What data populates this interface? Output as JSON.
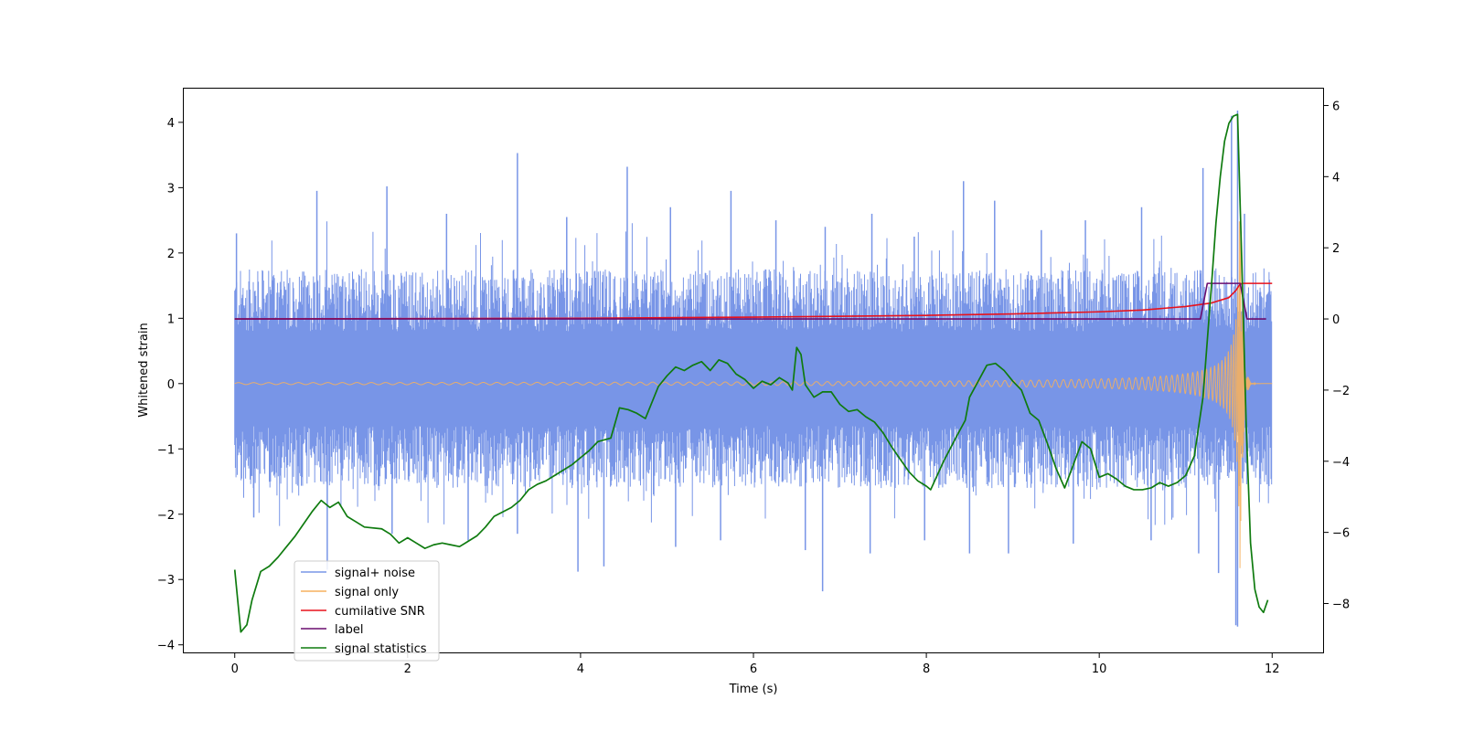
{
  "chart_data": {
    "type": "line",
    "title": "",
    "xlabel": "Time (s)",
    "ylabel": "Whitened strain",
    "y2label": "",
    "xlim": [
      -0.6,
      12.6
    ],
    "ylim": [
      -4.13,
      4.53
    ],
    "y2lim": [
      -9.4,
      6.5
    ],
    "xticks": [
      0,
      2,
      4,
      6,
      8,
      10,
      12
    ],
    "yticks": [
      -4,
      -3,
      -2,
      -1,
      0,
      1,
      2,
      3,
      4
    ],
    "y2ticks": [
      -8,
      -6,
      -4,
      -2,
      0,
      2,
      4,
      6
    ],
    "grid": false,
    "legend": {
      "placement": "lower-left",
      "entries": [
        "signal+ noise",
        "signal only",
        "cumilative SNR",
        "label",
        "signal statistics"
      ]
    },
    "noise_band": {
      "typical_low": -1.1,
      "typical_high": 1.35
    },
    "noise_spikes": {
      "x": [
        0.02,
        0.95,
        1.76,
        2.45,
        3.27,
        3.84,
        4.54,
        5.04,
        5.74,
        6.26,
        6.83,
        7.37,
        7.86,
        8.43,
        8.79,
        9.33,
        9.84,
        10.49,
        11.2,
        11.53,
        11.6,
        11.68
      ],
      "y": [
        2.3,
        2.95,
        3.02,
        2.6,
        3.53,
        2.55,
        3.32,
        2.7,
        2.95,
        2.5,
        2.4,
        2.6,
        2.25,
        3.1,
        2.8,
        2.35,
        2.5,
        2.7,
        3.3,
        4.1,
        4.18,
        2.6
      ]
    },
    "noise_dips": {
      "x": [
        0.22,
        1.07,
        1.82,
        2.7,
        3.27,
        3.97,
        4.27,
        5.1,
        5.62,
        6.6,
        6.8,
        7.35,
        7.98,
        8.5,
        8.95,
        9.7,
        10.6,
        11.15,
        11.38,
        11.58,
        11.6
      ],
      "y": [
        -2.05,
        -2.85,
        -2.3,
        -2.4,
        -2.3,
        -2.88,
        -2.8,
        -2.5,
        -2.4,
        -2.55,
        -3.18,
        -2.6,
        -2.4,
        -2.6,
        -2.6,
        -2.45,
        -2.4,
        -2.6,
        -2.9,
        -3.7,
        -3.72
      ]
    },
    "signal_only": {
      "t_merge": 11.64,
      "peak_amplitude": 2.9,
      "early_amplitude": 0.015
    },
    "cumulative_snr": {
      "x": [
        0,
        2,
        4,
        6,
        8,
        9,
        10,
        10.5,
        11,
        11.3,
        11.5,
        11.58,
        11.62,
        11.65,
        12
      ],
      "y": [
        0,
        0.01,
        0.02,
        0.05,
        0.1,
        0.14,
        0.2,
        0.25,
        0.35,
        0.45,
        0.6,
        0.8,
        0.95,
        1,
        1
      ]
    },
    "label": {
      "x": [
        0,
        11.17,
        11.25,
        11.63,
        11.71,
        11.93
      ],
      "y": [
        0,
        0,
        1,
        1,
        0,
        0
      ]
    },
    "signal_statistics": {
      "x": [
        0,
        0.07,
        0.14,
        0.2,
        0.3,
        0.4,
        0.5,
        0.6,
        0.7,
        0.8,
        0.9,
        1.0,
        1.1,
        1.2,
        1.3,
        1.4,
        1.5,
        1.7,
        1.8,
        1.9,
        2.0,
        2.1,
        2.2,
        2.3,
        2.4,
        2.5,
        2.6,
        2.7,
        2.8,
        2.9,
        3.0,
        3.2,
        3.3,
        3.4,
        3.5,
        3.6,
        3.7,
        3.8,
        3.9,
        4.0,
        4.1,
        4.2,
        4.35,
        4.45,
        4.55,
        4.65,
        4.75,
        4.9,
        5.0,
        5.1,
        5.2,
        5.3,
        5.4,
        5.5,
        5.6,
        5.7,
        5.8,
        5.9,
        6.0,
        6.1,
        6.2,
        6.3,
        6.4,
        6.45,
        6.5,
        6.55,
        6.6,
        6.7,
        6.8,
        6.9,
        7.0,
        7.1,
        7.2,
        7.3,
        7.4,
        7.5,
        7.6,
        7.7,
        7.8,
        7.9,
        8.0,
        8.05,
        8.2,
        8.35,
        8.45,
        8.5,
        8.6,
        8.7,
        8.8,
        8.9,
        9.0,
        9.1,
        9.2,
        9.3,
        9.4,
        9.5,
        9.6,
        9.7,
        9.8,
        9.9,
        10.0,
        10.1,
        10.2,
        10.3,
        10.4,
        10.5,
        10.6,
        10.7,
        10.8,
        10.9,
        11.0,
        11.1,
        11.2,
        11.25,
        11.3,
        11.35,
        11.4,
        11.45,
        11.5,
        11.55,
        11.6,
        11.65,
        11.7,
        11.75,
        11.8,
        11.85,
        11.9,
        11.95
      ],
      "y": [
        -7.05,
        -8.8,
        -8.6,
        -7.9,
        -7.1,
        -6.95,
        -6.7,
        -6.4,
        -6.1,
        -5.75,
        -5.4,
        -5.1,
        -5.3,
        -5.15,
        -5.55,
        -5.7,
        -5.85,
        -5.9,
        -6.05,
        -6.3,
        -6.15,
        -6.3,
        -6.45,
        -6.35,
        -6.3,
        -6.35,
        -6.4,
        -6.25,
        -6.1,
        -5.85,
        -5.55,
        -5.3,
        -5.1,
        -4.8,
        -4.65,
        -4.55,
        -4.4,
        -4.25,
        -4.1,
        -3.9,
        -3.7,
        -3.45,
        -3.35,
        -2.5,
        -2.55,
        -2.65,
        -2.8,
        -1.9,
        -1.6,
        -1.35,
        -1.45,
        -1.3,
        -1.2,
        -1.45,
        -1.15,
        -1.25,
        -1.55,
        -1.7,
        -1.95,
        -1.75,
        -1.85,
        -1.65,
        -1.8,
        -2.0,
        -0.8,
        -1.0,
        -1.85,
        -2.2,
        -2.05,
        -2.05,
        -2.4,
        -2.6,
        -2.55,
        -2.75,
        -2.9,
        -3.2,
        -3.6,
        -3.95,
        -4.3,
        -4.55,
        -4.7,
        -4.8,
        -4.0,
        -3.3,
        -2.85,
        -2.2,
        -1.75,
        -1.3,
        -1.25,
        -1.45,
        -1.75,
        -2.0,
        -2.65,
        -2.85,
        -3.5,
        -4.2,
        -4.75,
        -4.1,
        -3.45,
        -3.65,
        -4.45,
        -4.35,
        -4.5,
        -4.7,
        -4.8,
        -4.8,
        -4.75,
        -4.6,
        -4.7,
        -4.6,
        -4.4,
        -3.85,
        -2.2,
        -0.6,
        1.0,
        2.7,
        4.0,
        5.0,
        5.5,
        5.7,
        5.75,
        1.5,
        -3.0,
        -6.3,
        -7.6,
        -8.1,
        -8.25,
        -7.9
      ]
    },
    "colors": {
      "signal_noise": "#7895e7",
      "signal_only": "#f5b05e",
      "cumulative_snr": "#e8121c",
      "label": "#6a0d6e",
      "signal_statistics": "#0f7b0f",
      "frame": "#000000"
    }
  }
}
